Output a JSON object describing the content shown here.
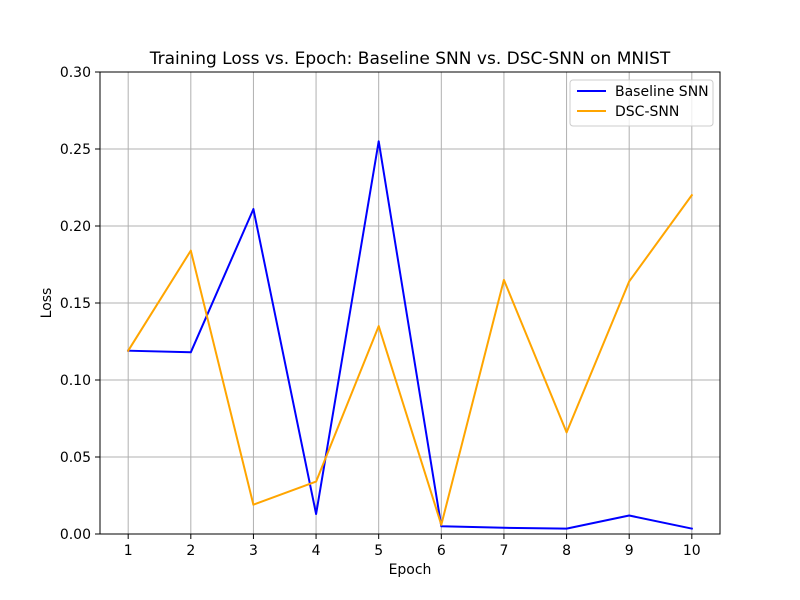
{
  "chart_data": {
    "type": "line",
    "title": "Training Loss vs. Epoch: Baseline SNN vs. DSC-SNN on MNIST",
    "xlabel": "Epoch",
    "ylabel": "Loss",
    "x": [
      1,
      2,
      3,
      4,
      5,
      6,
      7,
      8,
      9,
      10
    ],
    "x_ticks": [
      "1",
      "2",
      "3",
      "4",
      "5",
      "6",
      "7",
      "8",
      "9",
      "10"
    ],
    "y_ticks": [
      "0.00",
      "0.05",
      "0.10",
      "0.15",
      "0.20",
      "0.25",
      "0.30"
    ],
    "ylim": [
      0,
      0.3
    ],
    "xlim": [
      0.55,
      10.45
    ],
    "grid": true,
    "legend_position": "top-right",
    "series": [
      {
        "name": "Baseline SNN",
        "color": "#0000ff",
        "values": [
          0.119,
          0.118,
          0.211,
          0.013,
          0.255,
          0.005,
          0.004,
          0.0035,
          0.012,
          0.0035
        ]
      },
      {
        "name": "DSC-SNN",
        "color": "#ffa500",
        "values": [
          0.119,
          0.184,
          0.019,
          0.034,
          0.135,
          0.006,
          0.165,
          0.066,
          0.164,
          0.22
        ]
      }
    ]
  }
}
